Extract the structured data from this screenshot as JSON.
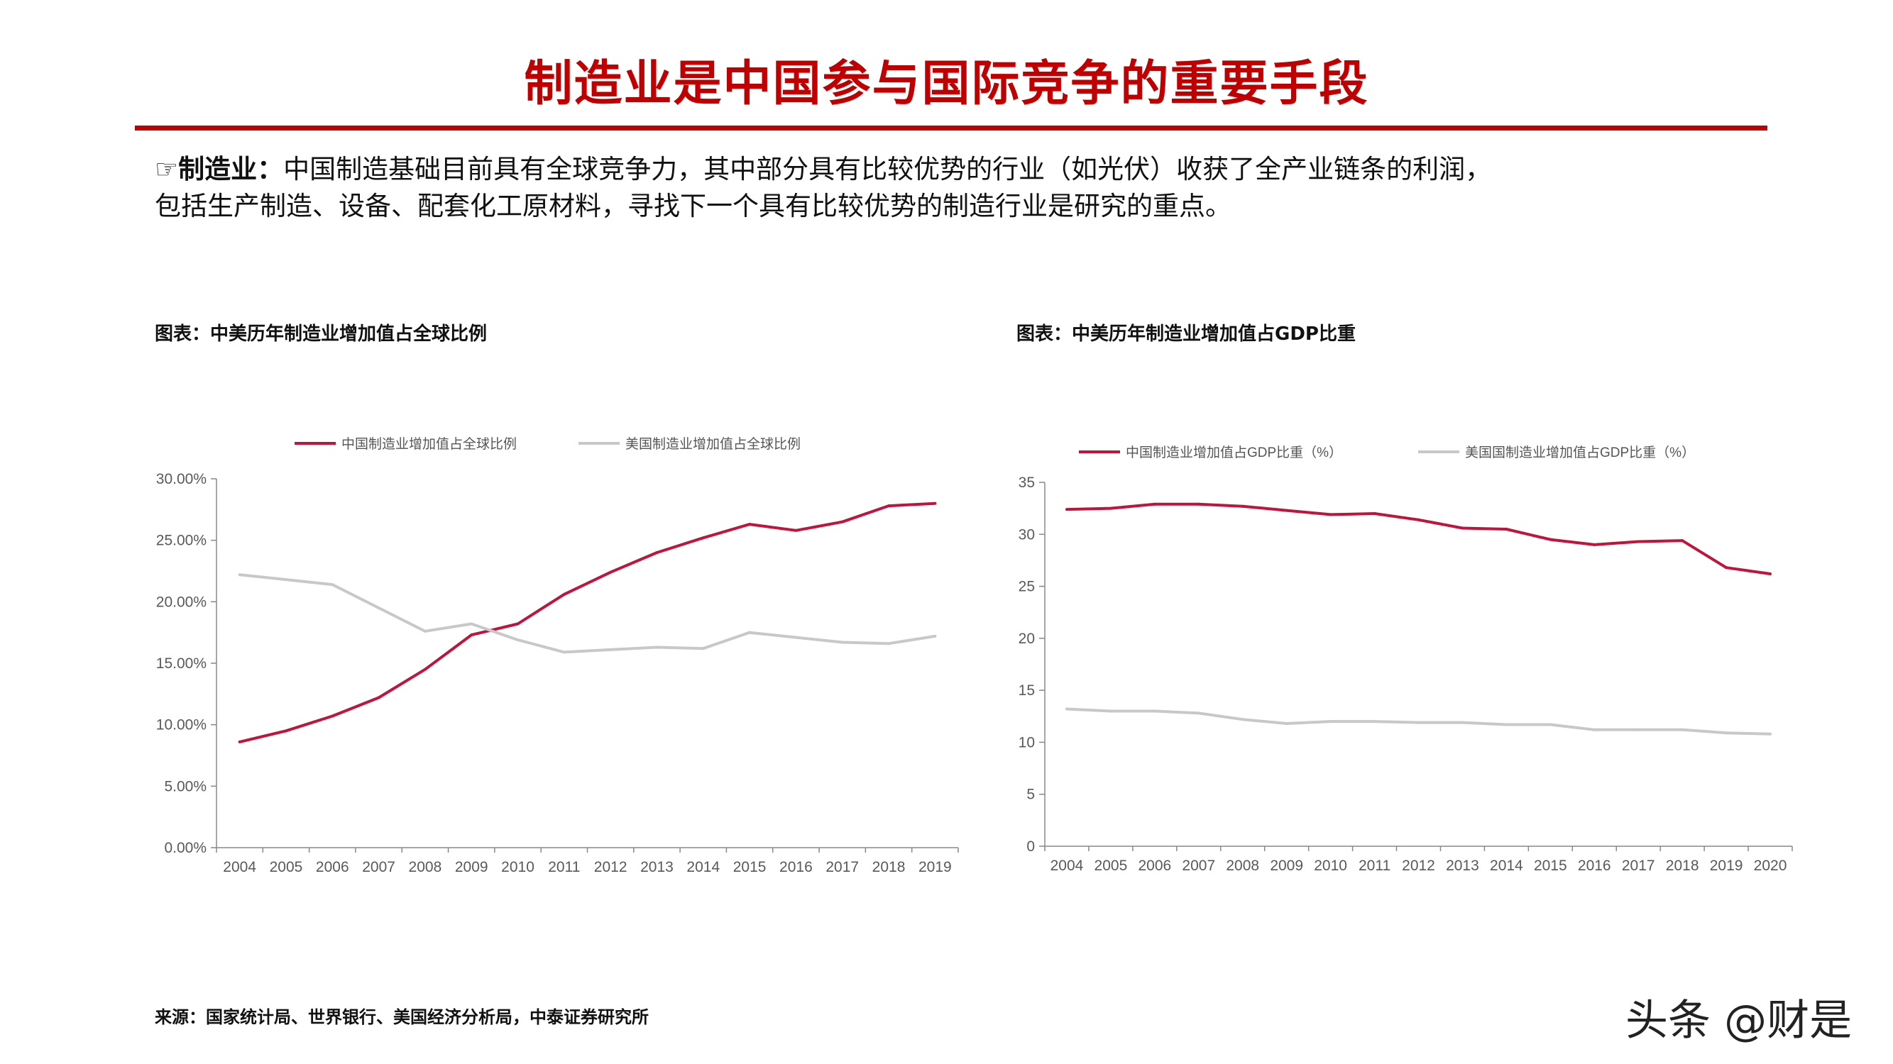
{
  "header": {
    "title": "制造业是中国参与国际竞争的重要手段"
  },
  "intro": {
    "bullet_icon": "☞",
    "lead": "制造业：",
    "text_line1": "中国制造基础目前具有全球竞争力，其中部分具有比较优势的行业（如光伏）收获了全产业链条的利润，",
    "text_line2": "包括生产制造、设备、配套化工原材料，寻找下一个具有比较优势的制造行业是研究的重点。"
  },
  "source": "来源：国家统计局、世界银行、美国经济分析局，中泰证券研究所",
  "watermark": "头条 @财是",
  "colors": {
    "accent": "#c00000",
    "china": "#c0143c",
    "usa": "#c8c8c8"
  },
  "chart_data": [
    {
      "type": "line",
      "caption": "图表：中美历年制造业增加值占全球比例",
      "x": [
        "2004",
        "2005",
        "2006",
        "2007",
        "2008",
        "2009",
        "2010",
        "2011",
        "2012",
        "2013",
        "2014",
        "2015",
        "2016",
        "2017",
        "2018",
        "2019"
      ],
      "series": [
        {
          "name": "中国制造业增加值占全球比例",
          "color": "#c0143c",
          "values": [
            8.6,
            9.5,
            10.7,
            12.2,
            14.5,
            17.3,
            18.2,
            20.6,
            22.4,
            24.0,
            25.2,
            26.3,
            25.8,
            26.5,
            27.8,
            28.0
          ]
        },
        {
          "name": "美国制造业增加值占全球比例",
          "color": "#c8c8c8",
          "values": [
            22.2,
            21.8,
            21.4,
            19.5,
            17.6,
            18.2,
            16.9,
            15.9,
            16.1,
            16.3,
            16.2,
            17.5,
            17.1,
            16.7,
            16.6,
            17.2
          ]
        }
      ],
      "ylim": [
        0,
        30
      ],
      "yticks": [
        "0.00%",
        "5.00%",
        "10.00%",
        "15.00%",
        "20.00%",
        "25.00%",
        "30.00%"
      ],
      "legend": "top"
    },
    {
      "type": "line",
      "caption": "图表：中美历年制造业增加值占GDP比重",
      "x": [
        "2004",
        "2005",
        "2006",
        "2007",
        "2008",
        "2009",
        "2010",
        "2011",
        "2012",
        "2013",
        "2014",
        "2015",
        "2016",
        "2017",
        "2018",
        "2019",
        "2020"
      ],
      "series": [
        {
          "name": "中国制造业增加值占GDP比重（%）",
          "color": "#c0143c",
          "values": [
            32.4,
            32.5,
            32.9,
            32.9,
            32.7,
            32.3,
            31.9,
            32.0,
            31.4,
            30.6,
            30.5,
            29.5,
            29.0,
            29.3,
            29.4,
            26.8,
            26.2
          ]
        },
        {
          "name": "美国国制造业增加值占GDP比重（%）",
          "color": "#c8c8c8",
          "values": [
            13.2,
            13.0,
            13.0,
            12.8,
            12.2,
            11.8,
            12.0,
            12.0,
            11.9,
            11.9,
            11.7,
            11.7,
            11.2,
            11.2,
            11.2,
            10.9,
            10.8
          ]
        }
      ],
      "ylim": [
        0,
        35
      ],
      "yticks": [
        "0",
        "5",
        "10",
        "15",
        "20",
        "25",
        "30",
        "35"
      ],
      "legend": "top"
    }
  ]
}
